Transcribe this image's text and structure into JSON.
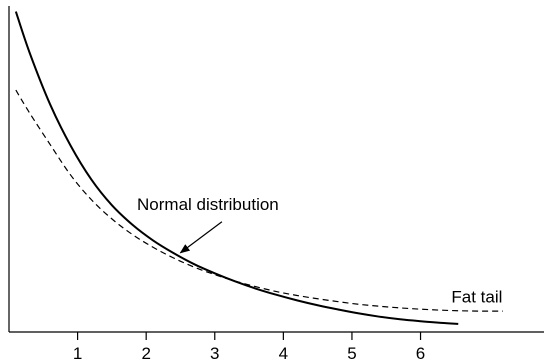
{
  "chart_data": {
    "type": "line",
    "title": "",
    "xlabel": "",
    "ylabel": "",
    "xlim": [
      0,
      7.8
    ],
    "ylim": [
      0,
      1
    ],
    "x_ticks": [
      "1",
      "2",
      "3",
      "4",
      "5",
      "6"
    ],
    "grid": false,
    "legend": "none",
    "series": [
      {
        "style": "solid",
        "color": "#000000",
        "x": [
          0.1,
          0.3,
          0.6,
          0.9,
          1.2,
          1.5,
          1.8,
          2.1,
          2.4,
          2.7,
          3.0,
          3.3,
          3.6,
          3.9,
          4.2,
          4.5,
          4.8,
          5.1,
          5.4,
          5.7,
          6.0,
          6.3,
          6.55
        ],
        "y": [
          0.983,
          0.857,
          0.698,
          0.571,
          0.468,
          0.389,
          0.329,
          0.281,
          0.242,
          0.208,
          0.18,
          0.155,
          0.133,
          0.114,
          0.097,
          0.082,
          0.069,
          0.057,
          0.047,
          0.039,
          0.033,
          0.028,
          0.025
        ]
      },
      {
        "style": "dashed",
        "color": "#000000",
        "x": [
          0.1,
          0.3,
          0.6,
          0.9,
          1.2,
          1.5,
          1.8,
          2.1,
          2.4,
          2.7,
          3.0,
          3.3,
          3.6,
          3.9,
          4.2,
          4.5,
          4.8,
          5.1,
          5.4,
          5.7,
          6.0,
          6.3,
          6.6,
          6.9,
          7.2
        ],
        "y": [
          0.742,
          0.672,
          0.575,
          0.481,
          0.406,
          0.347,
          0.299,
          0.26,
          0.227,
          0.199,
          0.176,
          0.156,
          0.139,
          0.124,
          0.112,
          0.102,
          0.093,
          0.085,
          0.079,
          0.074,
          0.07,
          0.067,
          0.065,
          0.064,
          0.064
        ]
      }
    ],
    "annotations": [
      {
        "text": "Normal distribution",
        "x": 2.9,
        "y": 0.375,
        "arrow_to": [
          2.5,
          0.243
        ]
      },
      {
        "text": "Fat tail",
        "x": 6.45,
        "y": 0.09
      }
    ]
  }
}
